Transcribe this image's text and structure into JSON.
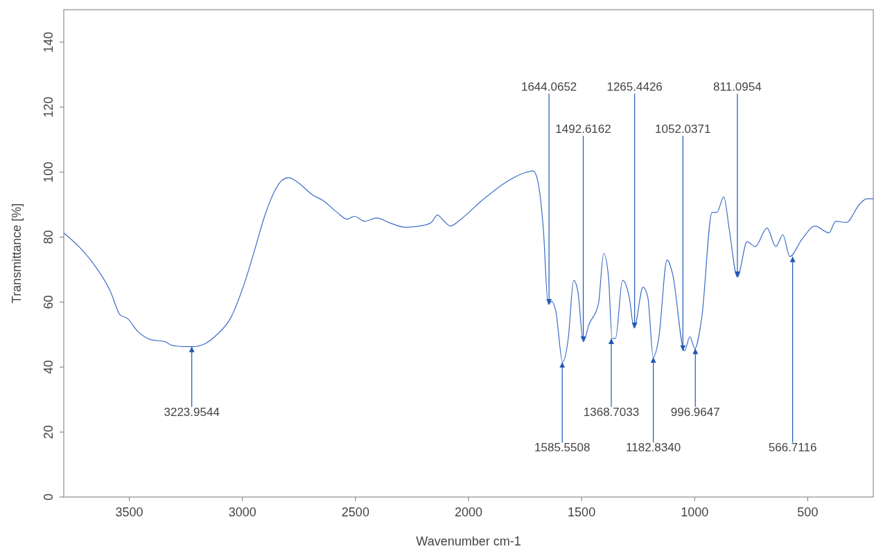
{
  "chart_data": {
    "type": "line",
    "xlabel": "Wavenumber cm-1",
    "ylabel": "Transmittance [%]",
    "xlim": [
      3790,
      210
    ],
    "ylim": [
      0,
      150
    ],
    "xticks": [
      3500,
      3000,
      2500,
      2000,
      1500,
      1000,
      500
    ],
    "yticks": [
      0,
      20,
      40,
      60,
      80,
      100,
      120,
      140
    ],
    "grid": false,
    "marker": "none",
    "line_style": "solid",
    "series": [
      {
        "color": "#3a6cc6",
        "x": [
          3790,
          3722,
          3661,
          3585,
          3540,
          3509,
          3463,
          3403,
          3342,
          3311,
          3250,
          3217,
          3165,
          3114,
          3053,
          2992,
          2946,
          2901,
          2855,
          2825,
          2794,
          2758,
          2688,
          2642,
          2581,
          2536,
          2505,
          2460,
          2405,
          2353,
          2277,
          2201,
          2165,
          2137,
          2116,
          2080,
          2034,
          1942,
          1821,
          1760,
          1714,
          1693,
          1669,
          1648,
          1632,
          1614,
          1584,
          1559,
          1535,
          1517,
          1492,
          1468,
          1426,
          1402,
          1381,
          1365,
          1350,
          1319,
          1289,
          1268,
          1228,
          1207,
          1183,
          1159,
          1122,
          1098,
          1045,
          1021,
          999,
          969,
          923,
          902,
          871,
          847,
          811,
          768,
          732,
          680,
          641,
          610,
          579,
          527,
          467,
          406,
          376,
          330,
          269,
          238,
          210
        ],
        "values": [
          81.3,
          77,
          72,
          63.5,
          56,
          55,
          51,
          48.4,
          47.8,
          46.7,
          46.3,
          46.3,
          47.2,
          49.9,
          55,
          65.6,
          76,
          86.6,
          94.5,
          97.5,
          98.3,
          97,
          92.9,
          91.2,
          87.6,
          85.5,
          86.4,
          84.9,
          85.9,
          84.5,
          83,
          83.6,
          84.5,
          86.8,
          85.5,
          83.4,
          85.5,
          91.2,
          97.5,
          99.6,
          100.4,
          97,
          82.4,
          59.3,
          60.2,
          57.2,
          41.5,
          48.8,
          66.7,
          63.5,
          47.8,
          53,
          59.3,
          75,
          67.7,
          48.8,
          48.8,
          66.7,
          61.4,
          52,
          64.6,
          61.4,
          43,
          48.8,
          73,
          68.8,
          45,
          49.3,
          45.7,
          55,
          87.6,
          87.6,
          92.4,
          82.4,
          67.7,
          78.6,
          77.1,
          82.8,
          77.1,
          80.7,
          74,
          79.2,
          83.4,
          81.3,
          84.9,
          84.5,
          90.3,
          91.8,
          91.8
        ]
      }
    ],
    "annotations": [
      {
        "text": "3223.9544",
        "x": 3223.9544,
        "y": 46.3
      },
      {
        "text": "1644.0652",
        "x": 1644.0652,
        "y": 59.3
      },
      {
        "text": "1585.5508",
        "x": 1585.5508,
        "y": 41.5
      },
      {
        "text": "1492.6162",
        "x": 1492.6162,
        "y": 47.8
      },
      {
        "text": "1368.7033",
        "x": 1368.7033,
        "y": 48.8
      },
      {
        "text": "1265.4426",
        "x": 1265.4426,
        "y": 52
      },
      {
        "text": "1182.8340",
        "x": 1182.834,
        "y": 43
      },
      {
        "text": "1052.0371",
        "x": 1052.0371,
        "y": 45
      },
      {
        "text": "996.9647",
        "x": 996.9647,
        "y": 45.7
      },
      {
        "text": "811.0954",
        "x": 811.0954,
        "y": 67.7
      },
      {
        "text": "566.7116",
        "x": 566.7116,
        "y": 74
      }
    ]
  }
}
